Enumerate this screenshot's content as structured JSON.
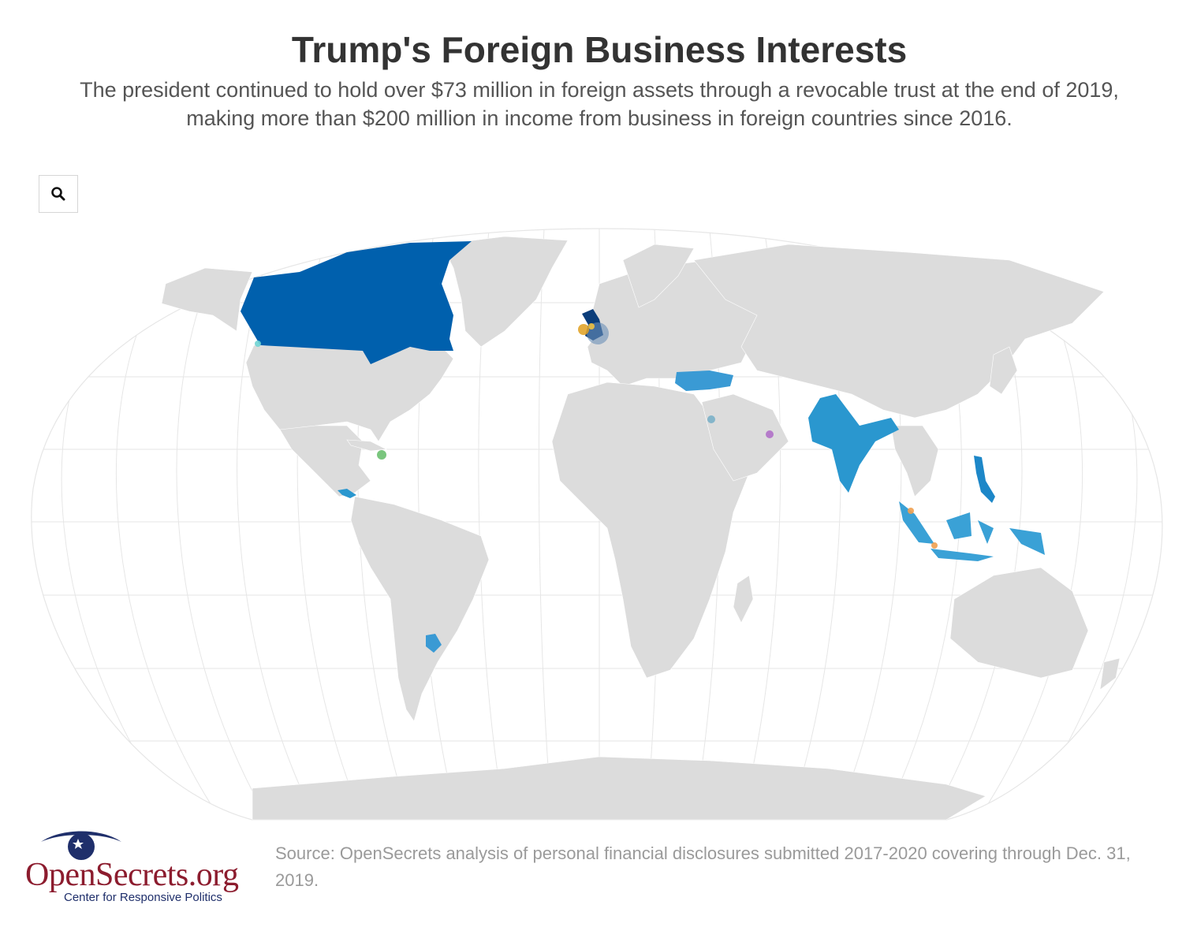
{
  "header": {
    "title": "Trump's Foreign Business Interests",
    "subtitle": "The president continued to hold over $73 million in foreign assets through a revocable trust at the end of 2019, making more than $200 million in income from business in foreign countries since 2016."
  },
  "controls": {
    "zoom_icon": "search-icon"
  },
  "map": {
    "projection": "robinson-like",
    "land_color": "#dcdcdc",
    "graticule_color": "#e6e6e6",
    "highlighted_countries": [
      {
        "name": "Canada",
        "color": "#0060ad"
      },
      {
        "name": "United Kingdom",
        "color": "#0b3d7a"
      },
      {
        "name": "Turkey",
        "color": "#3a9ad4"
      },
      {
        "name": "India",
        "color": "#2a97cf"
      },
      {
        "name": "Philippines",
        "color": "#1d87c8"
      },
      {
        "name": "Indonesia",
        "color": "#3aa1d6"
      },
      {
        "name": "Uruguay",
        "color": "#3a9ad4"
      },
      {
        "name": "Panama",
        "color": "#2a97cf"
      }
    ],
    "markers": [
      {
        "location": "Vancouver",
        "color": "#6fd3d3"
      },
      {
        "location": "Ireland",
        "color": "#e0a020"
      },
      {
        "location": "Scotland",
        "color": "#f0c040"
      },
      {
        "location": "United Kingdom",
        "color": "#6b8fb8"
      },
      {
        "location": "Israel",
        "color": "#7ab0c8"
      },
      {
        "location": "United Arab Emirates",
        "color": "#b070c8"
      },
      {
        "location": "Dominican Republic",
        "color": "#6cc070"
      },
      {
        "location": "Sumatra",
        "color": "#f0a050"
      },
      {
        "location": "Bali",
        "color": "#f0a050"
      }
    ]
  },
  "footer": {
    "source": "Source: OpenSecrets analysis of personal financial disclosures submitted 2017-2020 covering through Dec. 31, 2019.",
    "logo_name": "OpenSecrets.org",
    "logo_tagline": "Center for Responsive Politics"
  }
}
